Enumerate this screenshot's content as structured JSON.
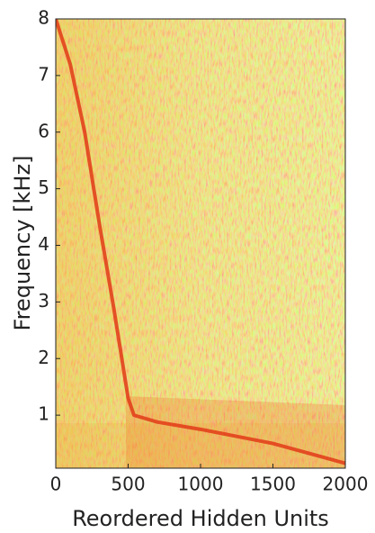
{
  "chart_data": {
    "type": "line",
    "xlabel": "Reordered Hidden Units",
    "ylabel": "Frequency [kHz]",
    "x": [
      0,
      100,
      200,
      300,
      400,
      500,
      540,
      700,
      1000,
      1500,
      2000
    ],
    "series": [
      {
        "color": "#e23a18",
        "values": [
          8,
          7.2,
          6,
          4.4,
          2.9,
          1.3,
          1.0,
          0.88,
          0.75,
          0.5,
          0.15
        ]
      }
    ],
    "xlim": [
      0,
      2000
    ],
    "xticks": [
      0,
      500,
      1000,
      1500,
      2000
    ],
    "ylim": [
      0,
      8
    ],
    "yticks": [
      1,
      2,
      3,
      4,
      5,
      6,
      7,
      8
    ]
  }
}
